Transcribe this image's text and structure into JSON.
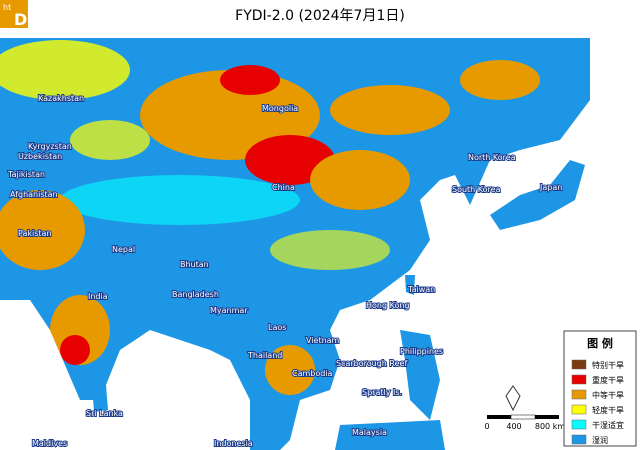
{
  "logo": {
    "small": "ht",
    "big": "D"
  },
  "title": "FYDI-2.0 (2024年7月1日)",
  "labels": {
    "kazakhstan": "Kazakhstan",
    "mongolia": "Mongolia",
    "kyrgyzstan": "Kyrgyzstan",
    "uzbekistan": "Uzbekistan",
    "tajikistan": "Tajikistan",
    "afghanistan": "Afghanistan",
    "pakistan": "Pakistan",
    "nepal": "Nepal",
    "bhutan": "Bhutan",
    "india": "India",
    "bangladesh": "Bangladesh",
    "myanmar": "Myanmar",
    "china": "China",
    "north_korea": "North Korea",
    "south_korea": "South Korea",
    "japan": "Japan",
    "taiwan": "Taiwan",
    "hong_kong": "Hong Kong",
    "laos": "Laos",
    "vietnam": "Vietnam",
    "thailand": "Thailand",
    "cambodia": "Cambodia",
    "philippines": "Philippines",
    "scarborough": "Scarborough Reef",
    "spratly": "Spratly Is.",
    "sri_lanka": "Sri Lanka",
    "maldives": "Maldives",
    "malaysia": "Malaysia",
    "indonesia": "Indonesia"
  },
  "legend": {
    "title": "图 例",
    "items": [
      {
        "label": "特别干旱",
        "color": "#7a3b10"
      },
      {
        "label": "重度干旱",
        "color": "#e60000"
      },
      {
        "label": "中等干旱",
        "color": "#e69a00"
      },
      {
        "label": "轻度干旱",
        "color": "#ffff00"
      },
      {
        "label": "干湿适宜",
        "color": "#00ffff"
      },
      {
        "label": "湿润",
        "color": "#1e96e6"
      }
    ]
  },
  "scale": {
    "start": "0",
    "mid": "400",
    "end": "800 km"
  }
}
